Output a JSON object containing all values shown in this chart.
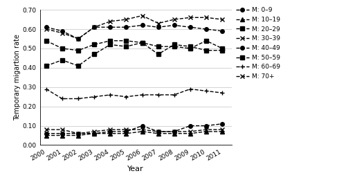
{
  "years": [
    2000,
    2001,
    2002,
    2003,
    2004,
    2005,
    2006,
    2007,
    2008,
    2009,
    2010,
    2011
  ],
  "series": {
    "M: 0-9": [
      0.06,
      0.06,
      0.06,
      0.06,
      0.07,
      0.07,
      0.1,
      0.07,
      0.07,
      0.1,
      0.1,
      0.11
    ],
    "M: 10-19": [
      0.05,
      0.05,
      0.05,
      0.06,
      0.06,
      0.06,
      0.07,
      0.06,
      0.06,
      0.06,
      0.07,
      0.07
    ],
    "M: 20-29": [
      0.41,
      0.44,
      0.41,
      0.47,
      0.52,
      0.51,
      0.53,
      0.47,
      0.52,
      0.51,
      0.49,
      0.49
    ],
    "M: 30-39": [
      0.6,
      0.58,
      0.55,
      0.61,
      0.64,
      0.65,
      0.67,
      0.63,
      0.65,
      0.66,
      0.66,
      0.65
    ],
    "M: 40-49": [
      0.61,
      0.59,
      0.55,
      0.61,
      0.61,
      0.61,
      0.62,
      0.61,
      0.62,
      0.61,
      0.6,
      0.59
    ],
    "M: 50-59": [
      0.54,
      0.5,
      0.49,
      0.52,
      0.54,
      0.54,
      0.53,
      0.51,
      0.51,
      0.5,
      0.54,
      0.5
    ],
    "M: 60-69": [
      0.29,
      0.24,
      0.24,
      0.25,
      0.26,
      0.25,
      0.26,
      0.26,
      0.26,
      0.29,
      0.28,
      0.27
    ],
    "M: 70+": [
      0.08,
      0.08,
      0.06,
      0.07,
      0.08,
      0.08,
      0.08,
      0.07,
      0.07,
      0.07,
      0.08,
      0.08
    ]
  },
  "marker_styles": [
    "o",
    "^",
    "s",
    "x",
    "o",
    "s",
    "+",
    "x"
  ],
  "legend_labels": [
    "M: 0–9",
    "M: 10–19",
    "M: 20–29",
    "M: 30–39",
    "M: 40–49",
    "M: 50–59",
    "M: 60–69",
    "M: 70+"
  ],
  "ylabel": "Temporary migartion rate",
  "xlabel": "Year",
  "ylim": [
    0.0,
    0.7
  ],
  "yticks": [
    0.0,
    0.1,
    0.2,
    0.3,
    0.4,
    0.5,
    0.6,
    0.7
  ],
  "color": "black",
  "linestyle": "--",
  "markersize": 4,
  "linewidth": 1.0,
  "figsize": [
    5.0,
    2.57
  ],
  "dpi": 100
}
